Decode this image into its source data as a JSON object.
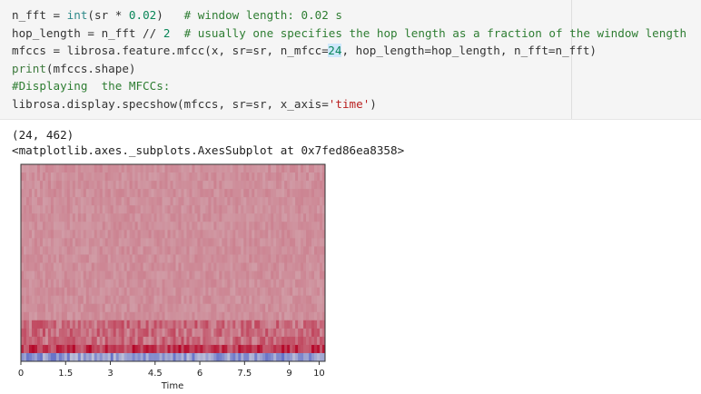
{
  "code_cell": {
    "lines": [
      [
        {
          "t": "n_fft = ",
          "c": ""
        },
        {
          "t": "int",
          "c": "tok-kw"
        },
        {
          "t": "(sr * ",
          "c": ""
        },
        {
          "t": "0.02",
          "c": "tok-num"
        },
        {
          "t": ")   ",
          "c": ""
        },
        {
          "t": "# window length: 0.02 s",
          "c": "tok-comment"
        }
      ],
      [
        {
          "t": "hop_length = n_fft // ",
          "c": ""
        },
        {
          "t": "2",
          "c": "tok-num"
        },
        {
          "t": "  ",
          "c": ""
        },
        {
          "t": "# usually one specifies the hop length as a fraction of the window length",
          "c": "tok-comment"
        }
      ],
      [
        {
          "t": "mfccs = librosa.feature.mfcc(x, sr=sr, n_mfcc=",
          "c": ""
        },
        {
          "t": "24",
          "c": "tok-num hl-num",
          "cursor_before": true
        },
        {
          "t": ", hop_length=hop_length, n_fft=n_fft)",
          "c": ""
        }
      ],
      [
        {
          "t": "print",
          "c": "tok-builtin"
        },
        {
          "t": "(mfccs.shape)",
          "c": ""
        }
      ],
      [
        {
          "t": "#Displaying  the MFCCs:",
          "c": "tok-comment"
        }
      ],
      [
        {
          "t": "librosa.display.specshow(mfccs, sr=sr, x_axis=",
          "c": ""
        },
        {
          "t": "'time'",
          "c": "tok-str"
        },
        {
          "t": ")",
          "c": ""
        }
      ]
    ]
  },
  "output": {
    "shape_line": "(24, 462)",
    "repr_line": "<matplotlib.axes._subplots.AxesSubplot at 0x7fed86ea8358>"
  },
  "chart_data": {
    "type": "heatmap",
    "title": "",
    "xlabel": "Time",
    "ylabel": "",
    "xlim": [
      0,
      10.2
    ],
    "x_ticks": [
      0,
      1.5,
      3,
      4.5,
      6,
      7.5,
      9,
      10
    ],
    "x_tick_labels": [
      "0",
      "1.5",
      "3",
      "4.5",
      "6",
      "7.5",
      "9",
      "10"
    ],
    "n_coefficients": 24,
    "n_frames": 462,
    "colormap": "coolwarm",
    "colors": {
      "cold": "#3b4cc0",
      "neutral": "#dddddd",
      "warm": "#b40426",
      "background": "#f4a582"
    }
  }
}
